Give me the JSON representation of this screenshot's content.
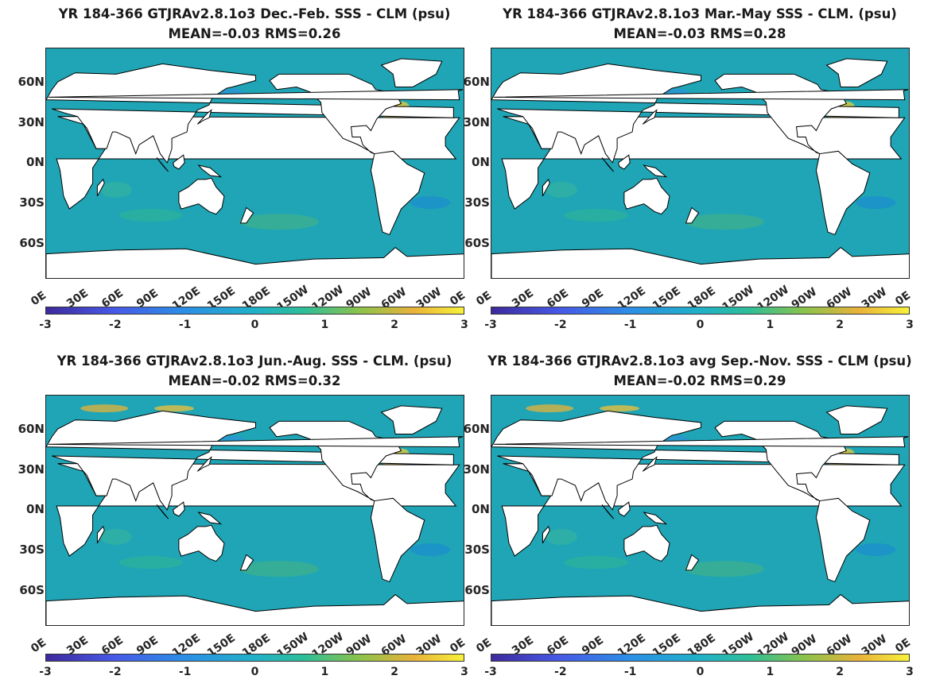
{
  "panels": [
    {
      "title": "YR 184-366 GTJRAv2.8.1o3  Dec.-Feb. SSS - CLM (psu)",
      "subtitle": "MEAN=-0.03   RMS=0.26"
    },
    {
      "title": "YR 184-366 GTJRAv2.8.1o3 Mar.-May SSS - CLM. (psu)",
      "subtitle": "MEAN=-0.03   RMS=0.28"
    },
    {
      "title": "YR 184-366 GTJRAv2.8.1o3 Jun.-Aug. SSS - CLM. (psu)",
      "subtitle": "MEAN=-0.02   RMS=0.32"
    },
    {
      "title": "YR 184-366 GTJRAv2.8.1o3 avg Sep.-Nov. SSS - CLM (psu)",
      "subtitle": "MEAN=-0.02   RMS=0.29"
    }
  ],
  "lat_labels": [
    "60N",
    "30N",
    "0N",
    "30S",
    "60S"
  ],
  "lon_labels": [
    "0E",
    "30E",
    "60E",
    "90E",
    "120E",
    "150E",
    "180E",
    "150W",
    "120W",
    "90W",
    "60W",
    "30W",
    "0E"
  ],
  "colorbar": {
    "ticks": [
      "-3",
      "-2",
      "-1",
      "0",
      "1",
      "2",
      "3"
    ],
    "range": [
      -3,
      3
    ],
    "colormap": "parula"
  },
  "colors": {
    "ocean": "#1fa5b5",
    "land": "#ffffff",
    "coast": "#000000",
    "positive": "#f0b43a",
    "negative": "#3a5fe0"
  }
}
